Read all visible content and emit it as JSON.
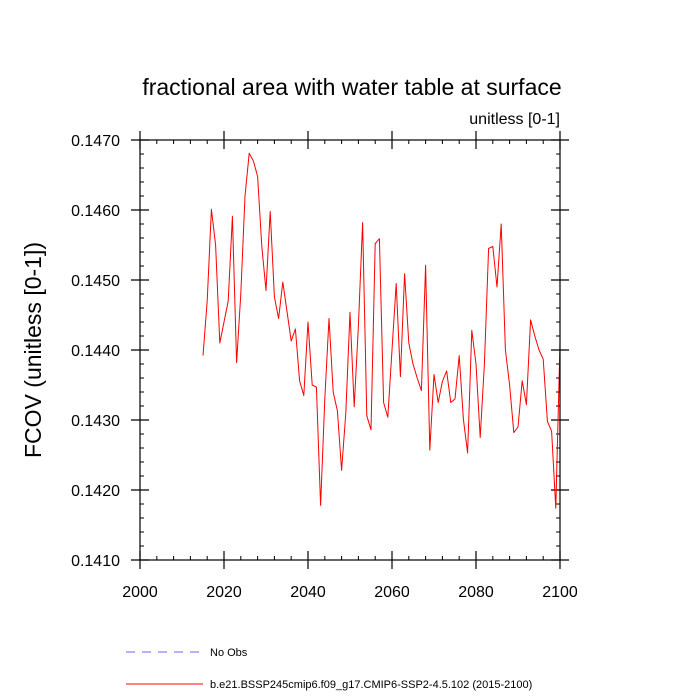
{
  "chart_data": {
    "type": "line",
    "title": "fractional area with water table at surface",
    "units_label": "unitless [0-1]",
    "xlabel": "",
    "ylabel": "FCOV  (unitless [0-1])",
    "xlim": [
      2000,
      2100
    ],
    "ylim": [
      0.141,
      0.147
    ],
    "x_ticks": [
      2000,
      2020,
      2040,
      2060,
      2080,
      2100
    ],
    "x_tick_labels": [
      "2000",
      "2020",
      "2040",
      "2060",
      "2080",
      "2100"
    ],
    "y_ticks": [
      0.141,
      0.142,
      0.143,
      0.144,
      0.145,
      0.146,
      0.147
    ],
    "y_tick_labels": [
      "0.1410",
      "0.1420",
      "0.1430",
      "0.1440",
      "0.1450",
      "0.1460",
      "0.1470"
    ],
    "grid": false,
    "legend": [
      {
        "label": "No Obs",
        "color": "#6666ff",
        "style": "dashed"
      },
      {
        "label": "b.e21.BSSP245cmip6.f09_g17.CMIP6-SSP2-4.5.102 (2015-2100)",
        "color": "#ff0000",
        "style": "solid"
      }
    ],
    "series": [
      {
        "name": "b.e21.BSSP245cmip6.f09_g17.CMIP6-SSP2-4.5.102 (2015-2100)",
        "color": "#ff0000",
        "x": [
          2015,
          2016,
          2017,
          2018,
          2019,
          2020,
          2021,
          2022,
          2023,
          2024,
          2025,
          2026,
          2027,
          2028,
          2029,
          2030,
          2031,
          2032,
          2033,
          2034,
          2035,
          2036,
          2037,
          2038,
          2039,
          2040,
          2041,
          2042,
          2043,
          2044,
          2045,
          2046,
          2047,
          2048,
          2049,
          2050,
          2051,
          2052,
          2053,
          2054,
          2055,
          2056,
          2057,
          2058,
          2059,
          2060,
          2061,
          2062,
          2063,
          2064,
          2065,
          2066,
          2067,
          2068,
          2069,
          2070,
          2071,
          2072,
          2073,
          2074,
          2075,
          2076,
          2077,
          2078,
          2079,
          2080,
          2081,
          2082,
          2083,
          2084,
          2085,
          2086,
          2087,
          2088,
          2089,
          2090,
          2091,
          2092,
          2093,
          2094,
          2095,
          2096,
          2097,
          2098,
          2099,
          2100
        ],
        "values": [
          0.14392,
          0.1447,
          0.14601,
          0.1455,
          0.1441,
          0.1444,
          0.1447,
          0.14591,
          0.14382,
          0.1448,
          0.1462,
          0.14681,
          0.1467,
          0.14648,
          0.14548,
          0.14485,
          0.14598,
          0.14476,
          0.14445,
          0.14497,
          0.14455,
          0.14413,
          0.1443,
          0.14356,
          0.14335,
          0.1444,
          0.1435,
          0.14347,
          0.14178,
          0.1433,
          0.14445,
          0.1434,
          0.14313,
          0.14228,
          0.1431,
          0.14454,
          0.14319,
          0.14435,
          0.14582,
          0.14306,
          0.14286,
          0.14552,
          0.14559,
          0.14325,
          0.14304,
          0.144,
          0.14495,
          0.14362,
          0.14509,
          0.1441,
          0.1438,
          0.1436,
          0.14342,
          0.14521,
          0.14257,
          0.14365,
          0.14325,
          0.14355,
          0.1437,
          0.14325,
          0.1433,
          0.14392,
          0.14301,
          0.14253,
          0.14428,
          0.1438,
          0.14275,
          0.1438,
          0.14545,
          0.14548,
          0.1449,
          0.1458,
          0.144,
          0.1435,
          0.14282,
          0.1429,
          0.14356,
          0.14322,
          0.14443,
          0.1442,
          0.144,
          0.14387,
          0.14298,
          0.14284,
          0.14174,
          0.1441
        ]
      }
    ]
  }
}
